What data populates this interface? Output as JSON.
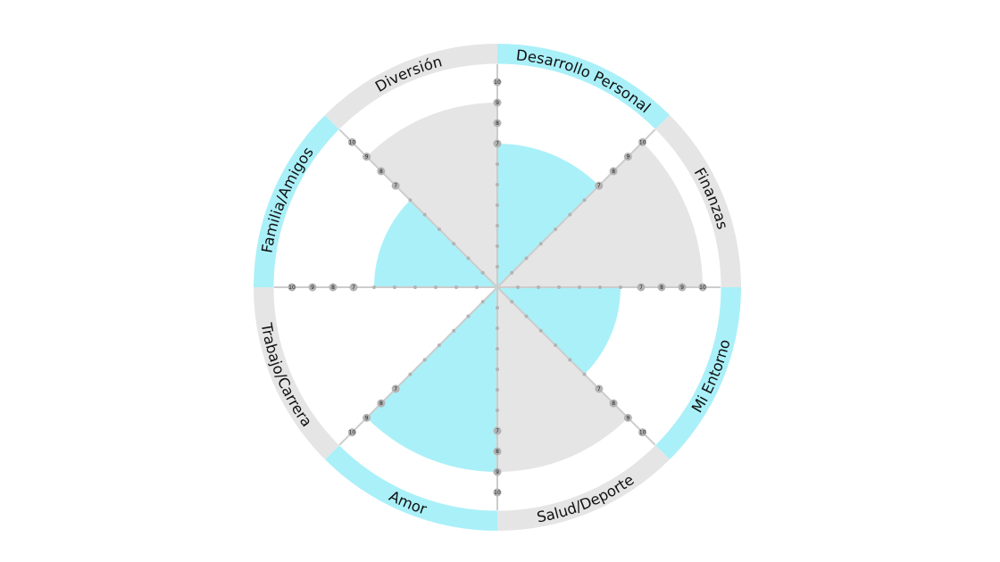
{
  "chart_data": {
    "type": "polar-area",
    "scale": {
      "min": 0,
      "max": 10,
      "ticks": [
        1,
        2,
        3,
        4,
        5,
        6,
        7,
        8,
        9,
        10
      ]
    },
    "categories": [
      "Desarrollo Personal",
      "Finanzas",
      "Mi Entorno",
      "Salud/Deporte",
      "Amor",
      "Trabajo/Carrera",
      "Familia/Amigos",
      "Diversión"
    ],
    "values": [
      7,
      10,
      6,
      9,
      9,
      0,
      6,
      9
    ],
    "grid": false,
    "legend": "none"
  },
  "colors": {
    "accent": "#aaf0f8",
    "neutral": "#e5e5e5",
    "axis": "#cccccc",
    "tick_dot": "#b3b3b3",
    "background": "#ffffff"
  }
}
